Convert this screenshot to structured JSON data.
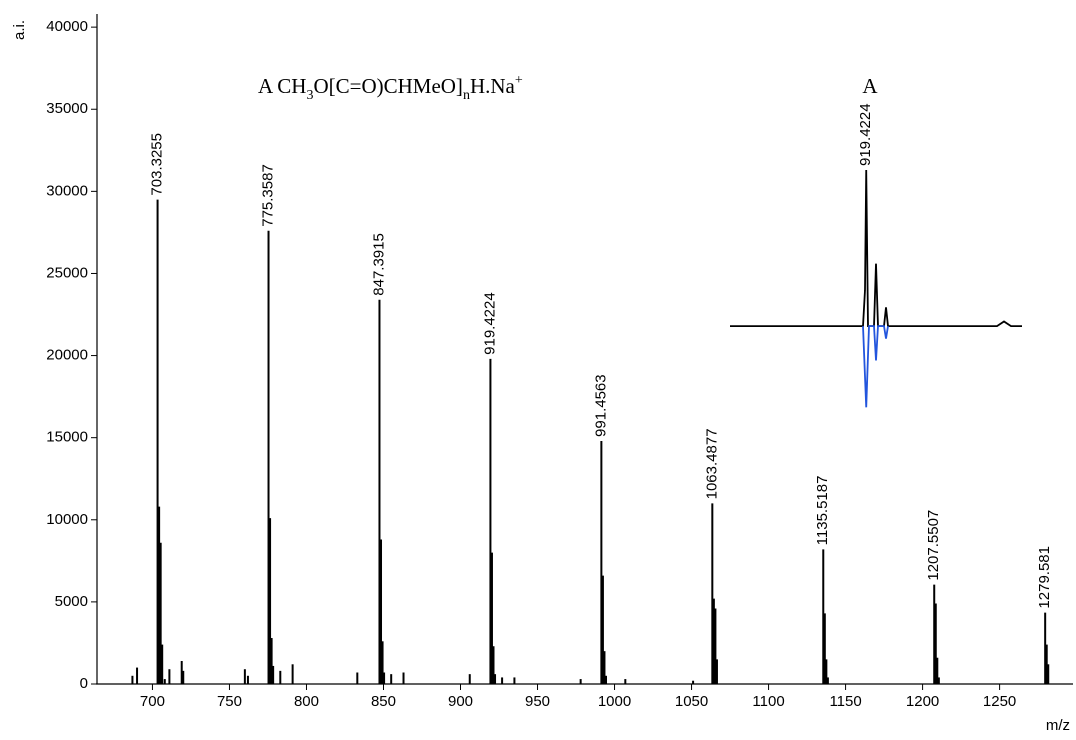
{
  "chart_data": [
    {
      "type": "spectrum",
      "y_label": "a.i.",
      "x_label": "m/z",
      "annotation": [
        "A CH",
        "3",
        "O[C=O)CHMeO]",
        "n",
        "H.Na",
        "+"
      ],
      "xlim": [
        664,
        1297
      ],
      "ylim": [
        0,
        40800
      ],
      "xticks": [
        700,
        750,
        800,
        850,
        900,
        950,
        1000,
        1050,
        1100,
        1150,
        1200,
        1250
      ],
      "yticks": [
        0,
        5000,
        10000,
        15000,
        20000,
        25000,
        30000,
        35000,
        40000
      ],
      "series": [
        {
          "color": "#000000",
          "labeled": true,
          "x": [
            703.3255,
            775.3587,
            847.3915,
            919.4224,
            991.4563,
            1063.4877,
            1135.5187,
            1207.5507,
            1279.581
          ],
          "values": [
            29500,
            27600,
            23400,
            19800,
            14800,
            11000,
            8200,
            6050,
            4350
          ]
        },
        {
          "color": "#000000",
          "x": [
            704.33,
            705.33,
            706.33,
            687,
            690,
            708,
            711,
            719,
            720,
            776.36,
            777.36,
            778.36,
            760,
            762,
            783,
            791,
            848.39,
            849.39,
            850.39,
            833,
            855,
            863,
            920.42,
            921.42,
            922.42,
            906,
            927,
            935,
            992.46,
            993.46,
            994.46,
            978,
            1007,
            1064.49,
            1065.49,
            1066.49,
            1051,
            1136.52,
            1137.52,
            1138.52,
            1208.55,
            1209.55,
            1210.55,
            1280.58,
            1281.58
          ],
          "values": [
            10800,
            8600,
            2400,
            500,
            1000,
            300,
            900,
            1400,
            800,
            10100,
            2800,
            1100,
            900,
            500,
            800,
            1200,
            8800,
            2600,
            700,
            700,
            600,
            700,
            8000,
            2300,
            600,
            600,
            400,
            400,
            6600,
            2000,
            500,
            300,
            300,
            5200,
            4600,
            1500,
            200,
            4300,
            1500,
            400,
            4900,
            1600,
            400,
            2400,
            1200
          ]
        }
      ]
    },
    {
      "type": "line",
      "title": "A",
      "xlim": [
        905.8,
        935
      ],
      "ylim": [
        -55,
        100
      ],
      "series": [
        {
          "color": "#000000",
          "x": [
            905.8,
            919.1,
            919.3,
            919.4224,
            919.6,
            920.2,
            920.4,
            920.6,
            921.2,
            921.4,
            921.6,
            932.5,
            933.2,
            933.9,
            935
          ],
          "values": [
            0,
            0,
            23,
            100,
            0,
            0,
            40,
            0,
            0,
            12,
            0,
            0,
            3,
            0,
            0
          ]
        },
        {
          "color": "#2255dd",
          "x": [
            919.1,
            919.4224,
            919.7,
            920.2,
            920.4,
            920.6,
            921.2,
            921.4,
            921.6
          ],
          "values": [
            0,
            -52,
            0,
            0,
            -22,
            0,
            0,
            -8,
            0
          ]
        }
      ],
      "peak_label_index": 3
    }
  ]
}
